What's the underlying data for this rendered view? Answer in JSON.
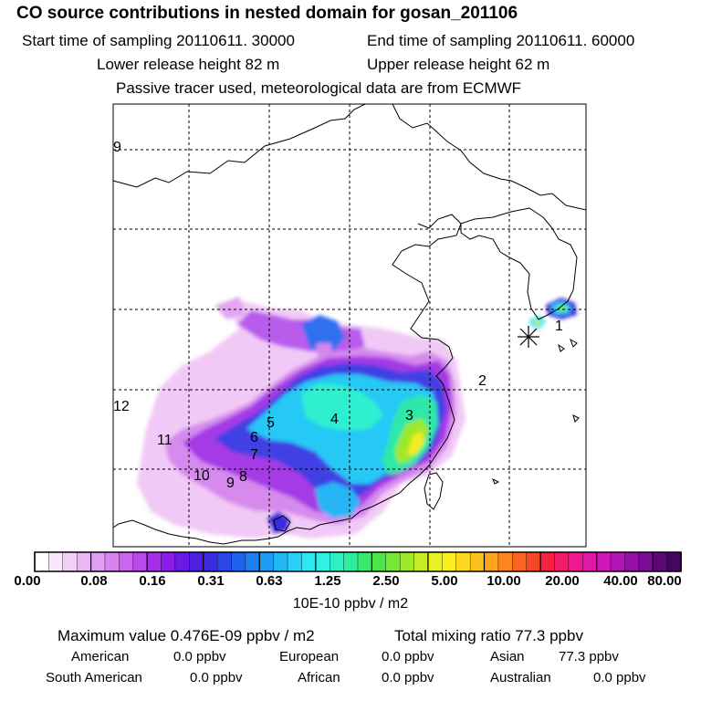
{
  "header": {
    "title": "CO  source contributions in nested domain for gosan_201106",
    "start_label": "Start time of sampling 20110611. 30000",
    "end_label": "End time of sampling 20110611. 60000",
    "lower_height": "Lower release height   82 m",
    "upper_height": "Upper release height   62 m",
    "tracer_note": "Passive tracer used, meteorological data are from ECMWF"
  },
  "map": {
    "region_labels": [
      "1",
      "2",
      "3",
      "4",
      "5",
      "6",
      "7",
      "8",
      "9",
      "10",
      "11",
      "12",
      "9"
    ],
    "receptor_marker": "asterisk-icon"
  },
  "colorbar": {
    "ticks": [
      "0.00",
      "0.08",
      "0.16",
      "0.31",
      "0.63",
      "1.25",
      "2.50",
      "5.00",
      "10.00",
      "20.00",
      "40.00",
      "80.00"
    ],
    "unit": "10E-10 ppbv / m2",
    "colors": [
      "#ffffff",
      "#f8e6fa",
      "#f3d0f8",
      "#eab8f5",
      "#e29ef3",
      "#d884ef",
      "#c966ee",
      "#b84aec",
      "#a52fe8",
      "#8b1ee6",
      "#6a1ae4",
      "#4f1fe0",
      "#3a2be0",
      "#2a46e6",
      "#1f62ec",
      "#1d80f0",
      "#1e9cf3",
      "#22b6f5",
      "#28cff7",
      "#2ee6f6",
      "#30f2e4",
      "#2ef0c4",
      "#30ec9c",
      "#3ae870",
      "#4be64a",
      "#74e832",
      "#9ee82a",
      "#c6ec26",
      "#e8f222",
      "#fbf01e",
      "#fdd81e",
      "#fcc01e",
      "#fca41e",
      "#fb861f",
      "#fa6622",
      "#f64628",
      "#f42440",
      "#f21a6a",
      "#ee1890",
      "#e018a8",
      "#cc16b6",
      "#b214b8",
      "#9610a8",
      "#7a0c96",
      "#5e0878",
      "#44065e"
    ]
  },
  "summary": {
    "max_label": "Maximum value  0.476E-09 ppbv / m2",
    "total_label": "Total mixing ratio       77.3 ppbv",
    "american": "American",
    "american_val": "0.0 ppbv",
    "european": "European",
    "european_val": "0.0 ppbv",
    "asian": "Asian",
    "asian_val": "77.3 ppbv",
    "south_american": "South American",
    "south_american_val": "0.0 ppbv",
    "african": "African",
    "african_val": "0.0 ppbv",
    "australian": "Australian",
    "australian_val": "0.0 ppbv"
  }
}
